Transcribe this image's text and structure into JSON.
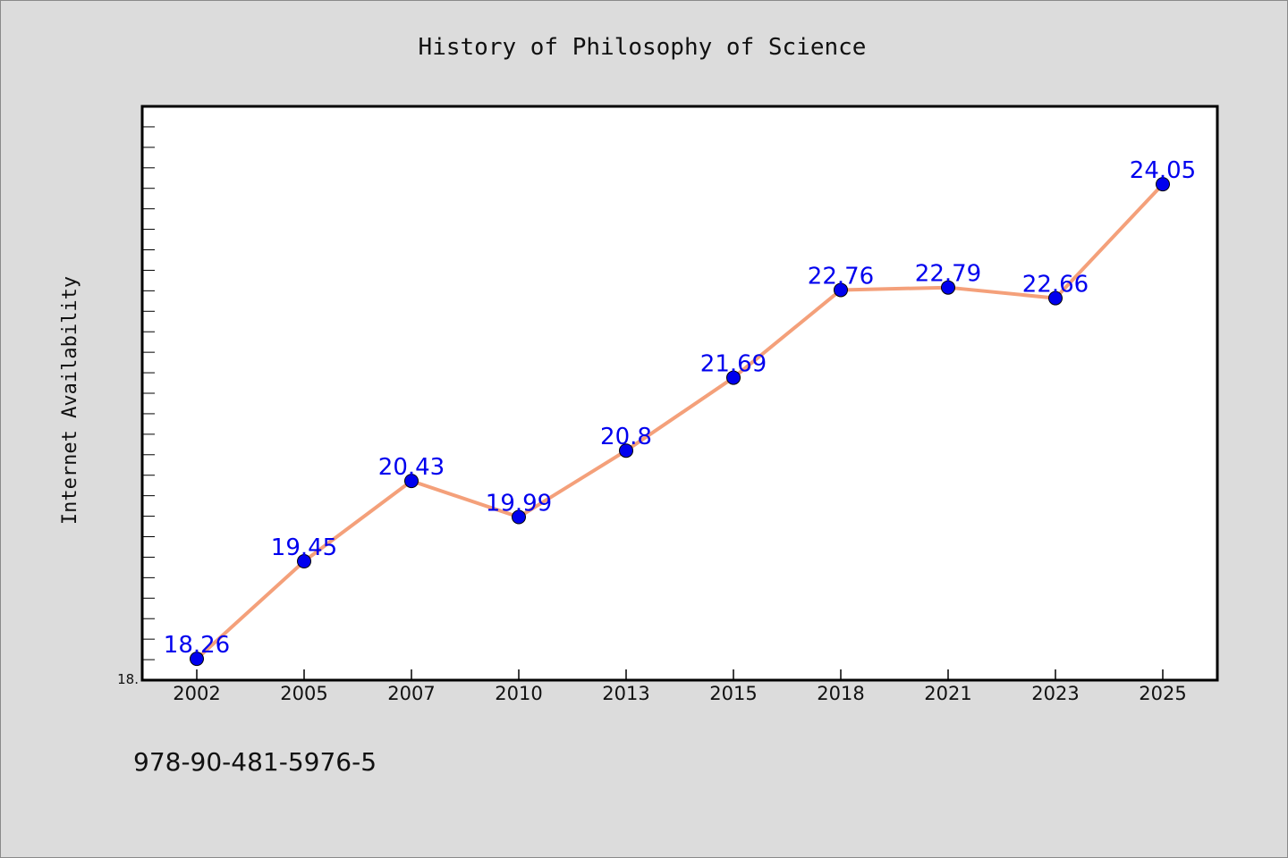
{
  "chart_data": {
    "type": "line",
    "title": "History of Philosophy of Science",
    "xlabel": "",
    "ylabel": "Internet Availability",
    "categories": [
      "2002",
      "2005",
      "2007",
      "2010",
      "2013",
      "2015",
      "2018",
      "2021",
      "2023",
      "2025"
    ],
    "series": [
      {
        "values": [
          18.26,
          19.45,
          20.43,
          19.99,
          20.8,
          21.69,
          22.76,
          22.79,
          22.66,
          24.05
        ],
        "labels": [
          "18.26",
          "19.45",
          "20.43",
          "19.99",
          "20.8",
          "21.69",
          "22.76",
          "22.79",
          "22.66",
          "24.05"
        ],
        "line_color": "#f4a07a",
        "marker_color": "#0000ee"
      }
    ],
    "ylim": [
      18.0,
      25.0
    ],
    "y_tick_labels": [
      "18."
    ],
    "grid": false,
    "legend": "none",
    "label_color": "#0000ee"
  },
  "footer": {
    "isbn": "978-90-481-5976-5"
  }
}
